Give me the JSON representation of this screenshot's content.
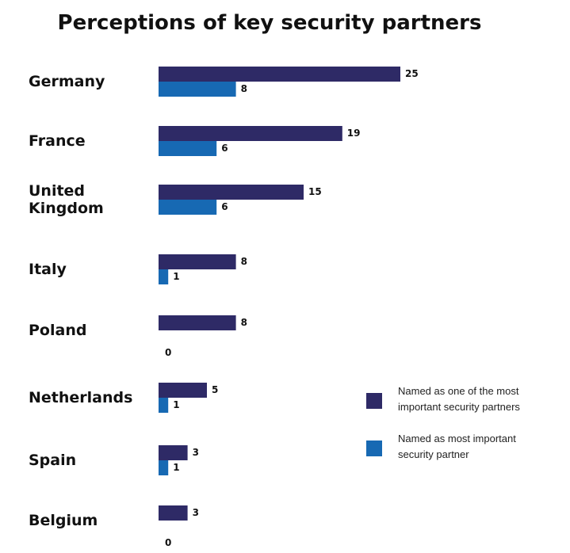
{
  "chart_data": {
    "type": "bar",
    "orientation": "horizontal",
    "title": "Perceptions of key security partners",
    "categories": [
      "Germany",
      "France",
      "United Kingdom",
      "Italy",
      "Poland",
      "Netherlands",
      "Spain",
      "Belgium"
    ],
    "category_lines": [
      [
        "Germany"
      ],
      [
        "France"
      ],
      [
        "United",
        "Kingdom"
      ],
      [
        "Italy"
      ],
      [
        "Poland"
      ],
      [
        "Netherlands"
      ],
      [
        "Spain"
      ],
      [
        "Belgium"
      ]
    ],
    "series": [
      {
        "name": "Named as one of the most important security partners",
        "legend_lines": [
          "Named as one of the most",
          "important security partners"
        ],
        "color": "#2e2a66",
        "values": [
          25,
          19,
          15,
          8,
          8,
          5,
          3,
          3
        ]
      },
      {
        "name": "Named as most important security partner",
        "legend_lines": [
          "Named as most important",
          "security partner"
        ],
        "color": "#1769b3",
        "values": [
          8,
          6,
          6,
          1,
          0,
          1,
          1,
          0
        ]
      }
    ],
    "xlim": [
      0,
      25
    ],
    "grid": false,
    "legend_position": "right"
  }
}
